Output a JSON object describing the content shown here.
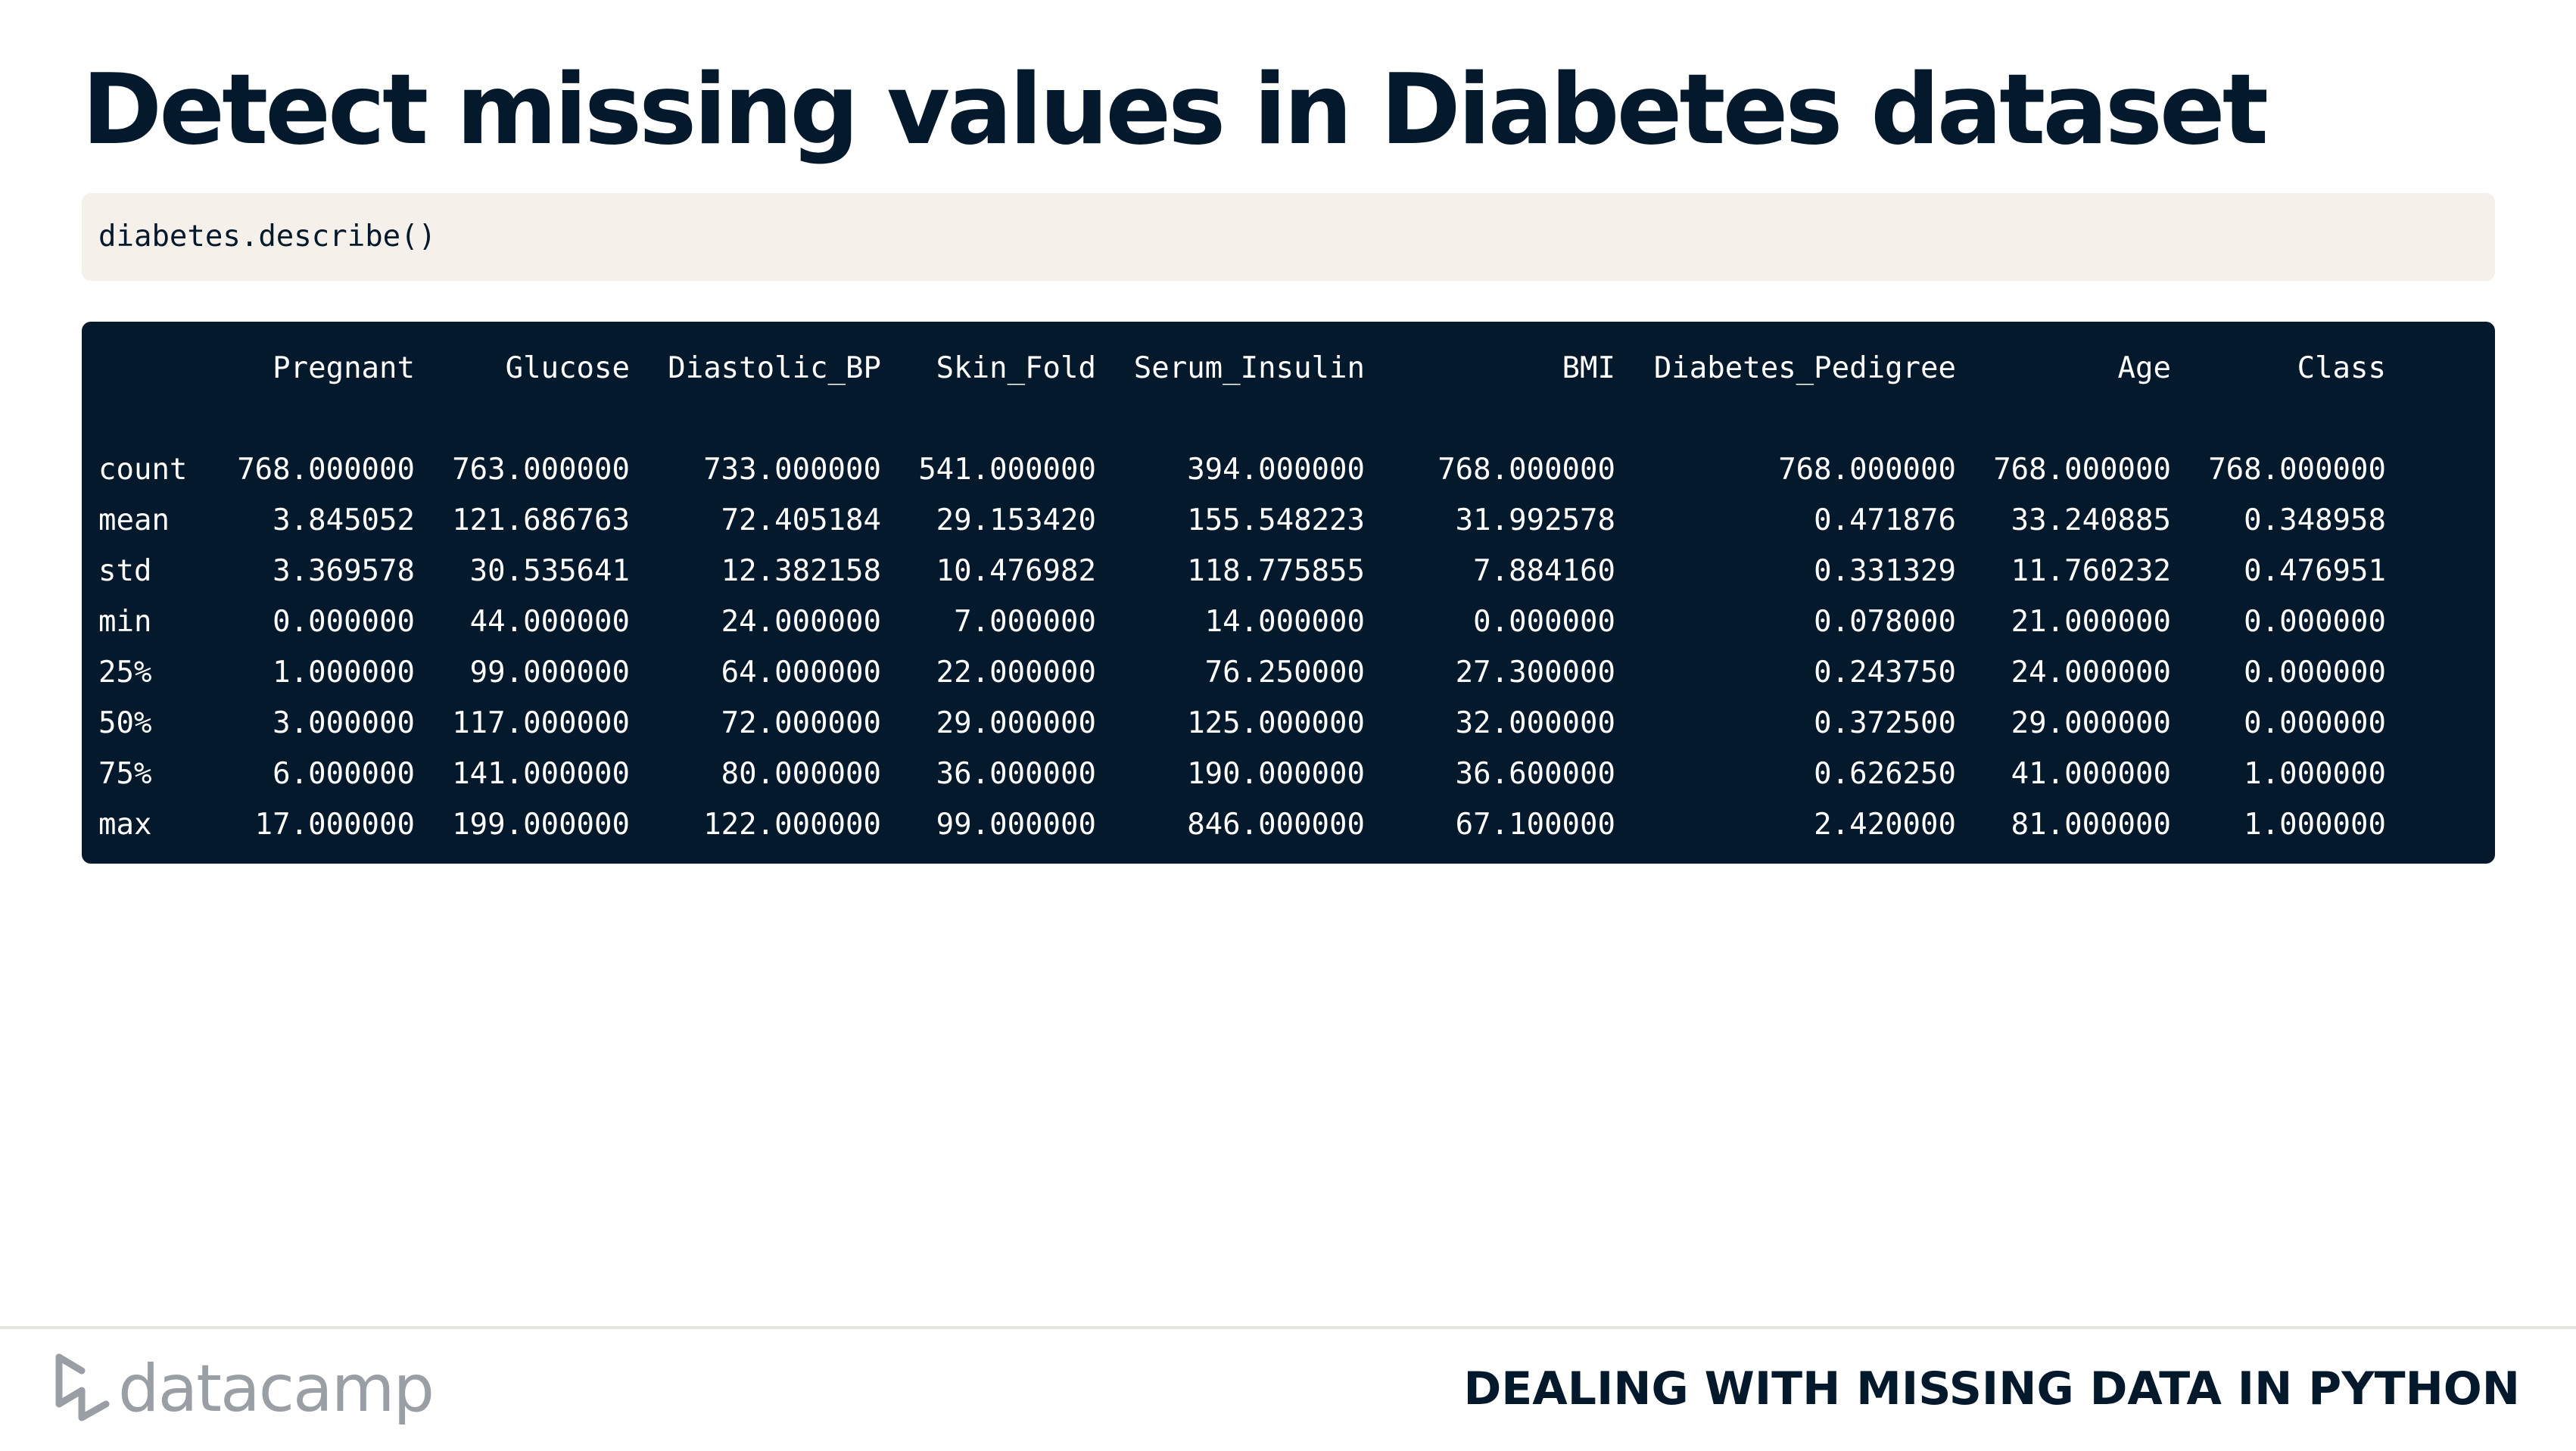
{
  "slide": {
    "title": "Detect missing values in Diabetes dataset"
  },
  "code": {
    "input": "diabetes.describe()"
  },
  "output": {
    "columns": [
      "",
      "Pregnant",
      "Glucose",
      "Diastolic_BP",
      "Skin_Fold",
      "Serum_Insulin",
      "BMI",
      "Diabetes_Pedigree",
      "Age",
      "Class"
    ],
    "rows": [
      {
        "label": "count",
        "values": [
          "768.000000",
          "763.000000",
          "733.000000",
          "541.000000",
          "394.000000",
          "768.000000",
          "768.000000",
          "768.000000",
          "768.000000"
        ]
      },
      {
        "label": "mean",
        "values": [
          "3.845052",
          "121.686763",
          "72.405184",
          "29.153420",
          "155.548223",
          "31.992578",
          "0.471876",
          "33.240885",
          "0.348958"
        ]
      },
      {
        "label": "std",
        "values": [
          "3.369578",
          "30.535641",
          "12.382158",
          "10.476982",
          "118.775855",
          "7.884160",
          "0.331329",
          "11.760232",
          "0.476951"
        ]
      },
      {
        "label": "min",
        "values": [
          "0.000000",
          "44.000000",
          "24.000000",
          "7.000000",
          "14.000000",
          "0.000000",
          "0.078000",
          "21.000000",
          "0.000000"
        ]
      },
      {
        "label": "25%",
        "values": [
          "1.000000",
          "99.000000",
          "64.000000",
          "22.000000",
          "76.250000",
          "27.300000",
          "0.243750",
          "24.000000",
          "0.000000"
        ]
      },
      {
        "label": "50%",
        "values": [
          "3.000000",
          "117.000000",
          "72.000000",
          "29.000000",
          "125.000000",
          "32.000000",
          "0.372500",
          "29.000000",
          "0.000000"
        ]
      },
      {
        "label": "75%",
        "values": [
          "6.000000",
          "141.000000",
          "80.000000",
          "36.000000",
          "190.000000",
          "36.600000",
          "0.626250",
          "41.000000",
          "1.000000"
        ]
      },
      {
        "label": "max",
        "values": [
          "17.000000",
          "199.000000",
          "122.000000",
          "99.000000",
          "846.000000",
          "67.100000",
          "2.420000",
          "81.000000",
          "1.000000"
        ]
      }
    ]
  },
  "footer": {
    "logo_text": "datacamp",
    "course_title": "DEALING WITH MISSING DATA IN PYTHON"
  },
  "colors": {
    "navy": "#05192d",
    "code_background": "#f5f1ea",
    "logo_grey": "#9a9fa5"
  }
}
